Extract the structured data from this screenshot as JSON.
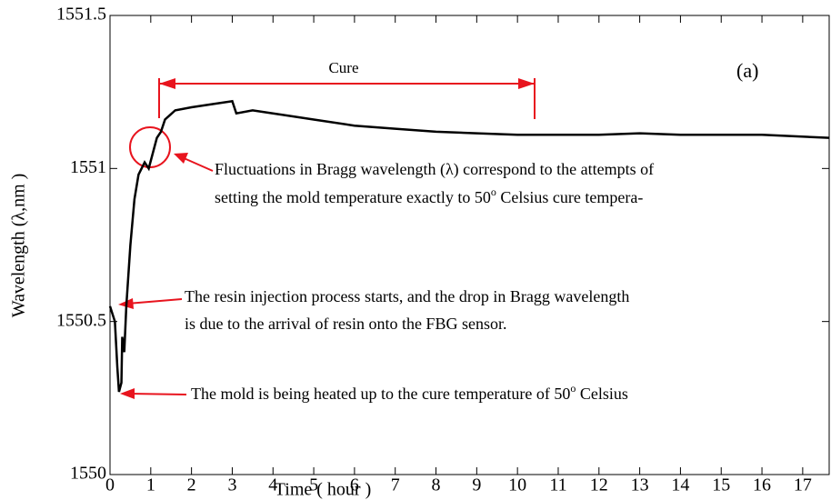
{
  "chart_data": {
    "type": "line",
    "xlabel": "Time ( hour )",
    "ylabel": "Wavelength (λ,nm )",
    "xlim": [
      0,
      17.65
    ],
    "ylim": [
      1550,
      1551.5
    ],
    "xticks": [
      0,
      1,
      2,
      3,
      4,
      5,
      6,
      7,
      8,
      9,
      10,
      11,
      12,
      13,
      14,
      15,
      16,
      17
    ],
    "yticks": [
      1550,
      1550.5,
      1551,
      1551.5
    ],
    "color": "#000000",
    "x": [
      0,
      0.12,
      0.18,
      0.22,
      0.28,
      0.3,
      0.35,
      0.4,
      0.5,
      0.6,
      0.7,
      0.85,
      0.95,
      1.05,
      1.15,
      1.25,
      1.35,
      1.6,
      2,
      2.5,
      3,
      3.1,
      3.5,
      4,
      5,
      6,
      7,
      8,
      9,
      10,
      11,
      12,
      13,
      14,
      15,
      16,
      17.65
    ],
    "values": [
      1550.55,
      1550.5,
      1550.35,
      1550.27,
      1550.3,
      1550.45,
      1550.4,
      1550.55,
      1550.75,
      1550.9,
      1550.98,
      1551.02,
      1551.0,
      1551.05,
      1551.1,
      1551.12,
      1551.16,
      1551.19,
      1551.2,
      1551.21,
      1551.22,
      1551.18,
      1551.19,
      1551.18,
      1551.16,
      1551.14,
      1551.13,
      1551.12,
      1551.115,
      1551.11,
      1551.11,
      1551.11,
      1551.115,
      1551.11,
      1551.11,
      1551.11,
      1551.1
    ],
    "annotations": {
      "cure": "Cure",
      "panel": "(a)",
      "fluctuations": [
        "Fluctuations in Bragg wavelength (λ) correspond to the attempts of",
        {
          "text": "setting the mold temperature exactly to 50",
          "sup": "o",
          "tail": " Celsius cure tempera-"
        }
      ],
      "resin": [
        "The resin injection process starts, and the drop in Bragg wavelength",
        "is due to the arrival of resin onto the FBG sensor."
      ],
      "mold": [
        {
          "text": "The mold is being heated up to the cure temperature of 50",
          "sup": "o",
          "tail": " Celsius"
        }
      ]
    }
  }
}
